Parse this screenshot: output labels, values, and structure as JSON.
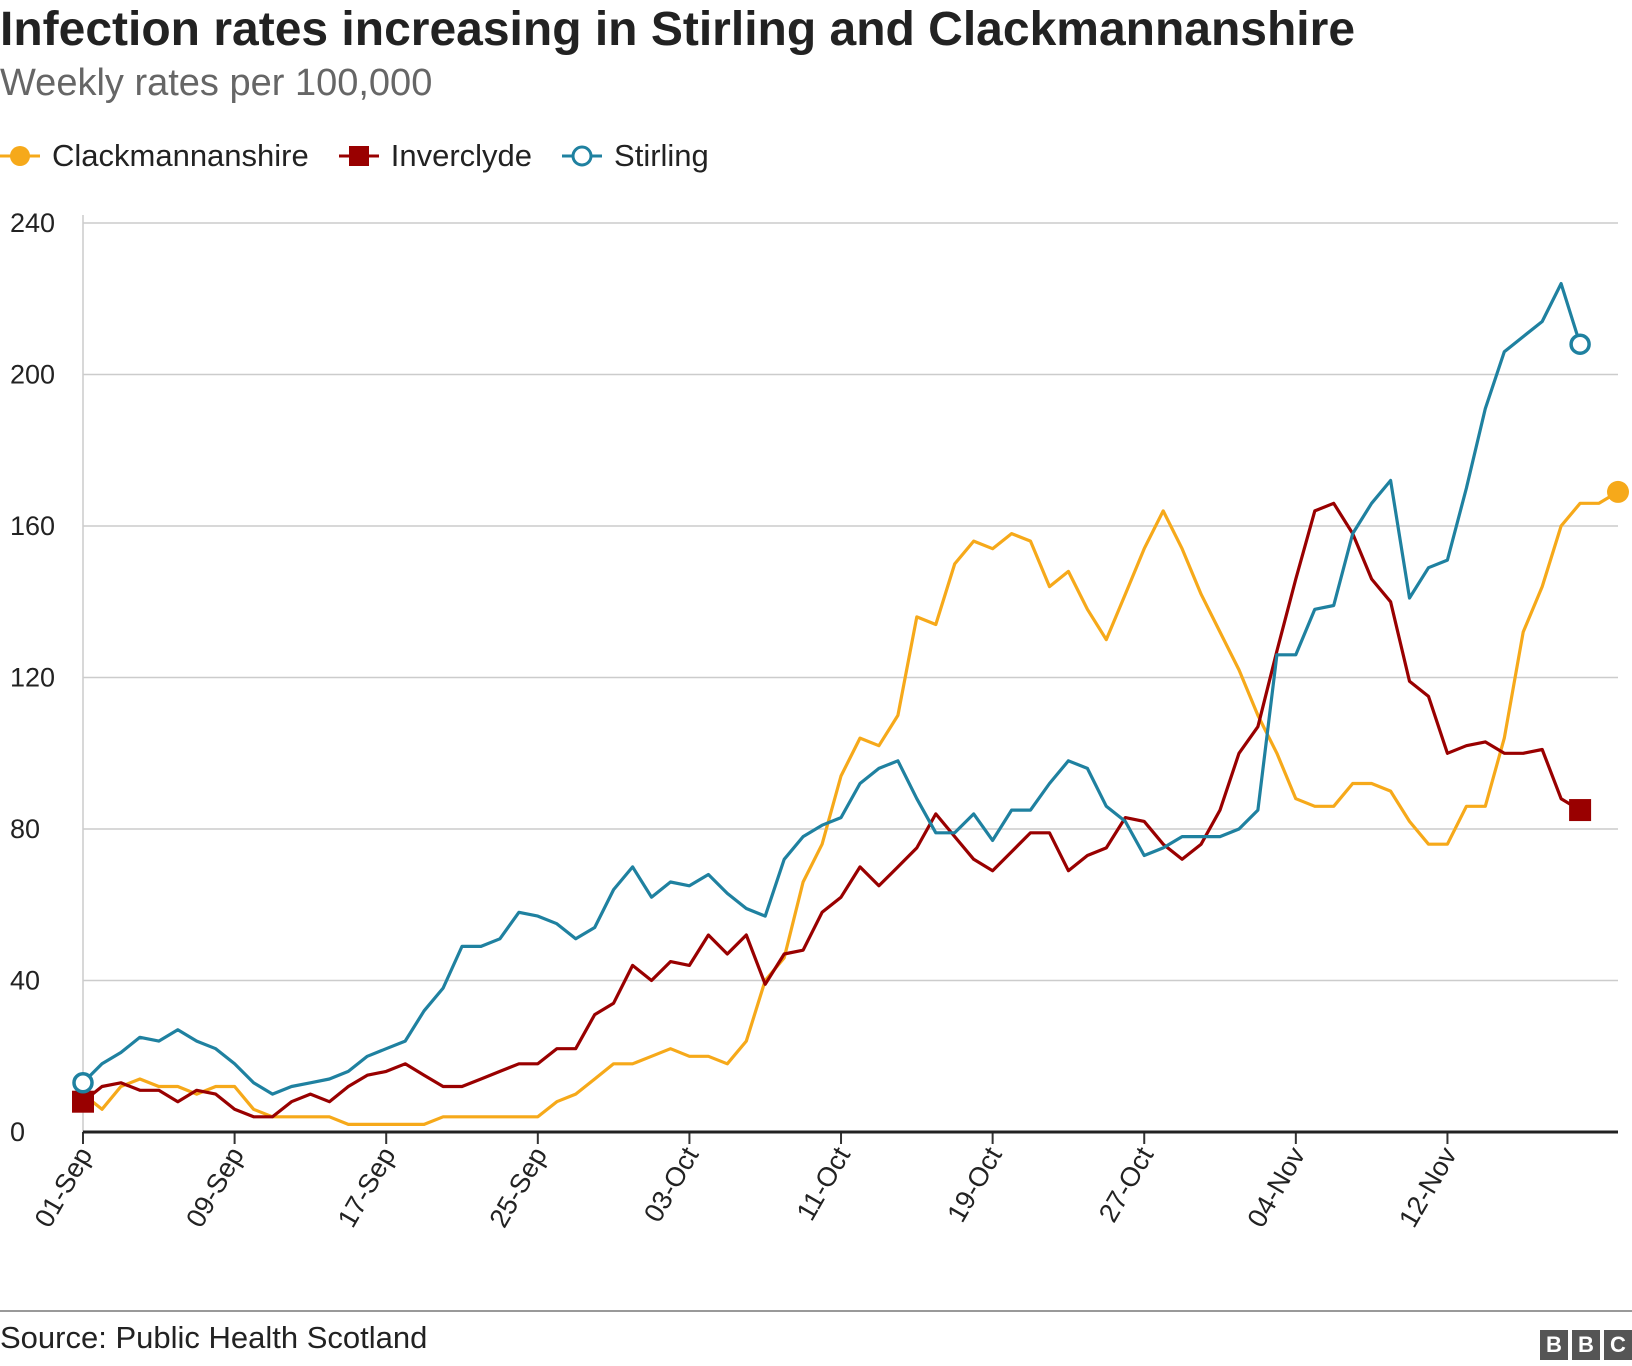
{
  "header": {
    "title": "Infection rates increasing in Stirling and Clackmannanshire",
    "subtitle": "Weekly rates per 100,000"
  },
  "footer": {
    "source": "Source: Public Health Scotland",
    "logo_letters": [
      "B",
      "B",
      "C"
    ]
  },
  "chart_data": {
    "type": "line",
    "title": "Infection rates increasing in Stirling and Clackmannanshire",
    "subtitle": "Weekly rates per 100,000",
    "xlabel": "",
    "ylabel": "",
    "ylim": [
      0,
      240
    ],
    "yticks": [
      0,
      40,
      80,
      120,
      160,
      200,
      240
    ],
    "x_tick_labels": [
      {
        "label": "01-Sep",
        "index": 0
      },
      {
        "label": "09-Sep",
        "index": 8
      },
      {
        "label": "17-Sep",
        "index": 16
      },
      {
        "label": "25-Sep",
        "index": 24
      },
      {
        "label": "03-Oct",
        "index": 32
      },
      {
        "label": "11-Oct",
        "index": 40
      },
      {
        "label": "19-Oct",
        "index": 48
      },
      {
        "label": "27-Oct",
        "index": 56
      },
      {
        "label": "04-Nov",
        "index": 64
      },
      {
        "label": "12-Nov",
        "index": 72
      }
    ],
    "legend_position": "top-left",
    "grid": true,
    "series": [
      {
        "name": "Clackmannanshire",
        "color": "#f6a91a",
        "marker": "filled-circle",
        "values": [
          10,
          6,
          12,
          14,
          12,
          12,
          10,
          12,
          12,
          6,
          4,
          4,
          4,
          4,
          2,
          2,
          2,
          2,
          2,
          4,
          4,
          4,
          4,
          4,
          4,
          8,
          10,
          14,
          18,
          18,
          20,
          22,
          20,
          20,
          18,
          24,
          40,
          46,
          66,
          76,
          94,
          104,
          102,
          110,
          136,
          134,
          150,
          156,
          154,
          158,
          156,
          144,
          148,
          138,
          130,
          142,
          154,
          164,
          154,
          142,
          132,
          122,
          110,
          100,
          88,
          86,
          86,
          92,
          92,
          90,
          82,
          76,
          76,
          86,
          86,
          104,
          132,
          144,
          160,
          166,
          166,
          169
        ]
      },
      {
        "name": "Inverclyde",
        "color": "#990000",
        "marker": "filled-square",
        "values": [
          8,
          12,
          13,
          11,
          11,
          8,
          11,
          10,
          6,
          4,
          4,
          8,
          10,
          8,
          12,
          15,
          16,
          18,
          15,
          12,
          12,
          14,
          16,
          18,
          18,
          22,
          22,
          31,
          34,
          44,
          40,
          45,
          44,
          52,
          47,
          52,
          39,
          47,
          48,
          58,
          62,
          70,
          65,
          70,
          75,
          84,
          78,
          72,
          69,
          74,
          79,
          79,
          69,
          73,
          75,
          83,
          82,
          76,
          72,
          76,
          85,
          100,
          107,
          127,
          146,
          164,
          166,
          158,
          146,
          140,
          119,
          115,
          100,
          102,
          103,
          100,
          100,
          101,
          88,
          85
        ]
      },
      {
        "name": "Stirling",
        "color": "#1f81a0",
        "marker": "hollow-circle",
        "values": [
          13,
          18,
          21,
          25,
          24,
          27,
          24,
          22,
          18,
          13,
          10,
          12,
          13,
          14,
          16,
          20,
          22,
          24,
          32,
          38,
          49,
          49,
          51,
          58,
          57,
          55,
          51,
          54,
          64,
          70,
          62,
          66,
          65,
          68,
          63,
          59,
          57,
          72,
          78,
          81,
          83,
          92,
          96,
          98,
          88,
          79,
          79,
          84,
          77,
          85,
          85,
          92,
          98,
          96,
          86,
          82,
          73,
          75,
          78,
          78,
          78,
          80,
          85,
          126,
          126,
          138,
          139,
          158,
          166,
          172,
          141,
          149,
          151,
          170,
          191,
          206,
          210,
          214,
          224,
          208
        ]
      }
    ]
  }
}
